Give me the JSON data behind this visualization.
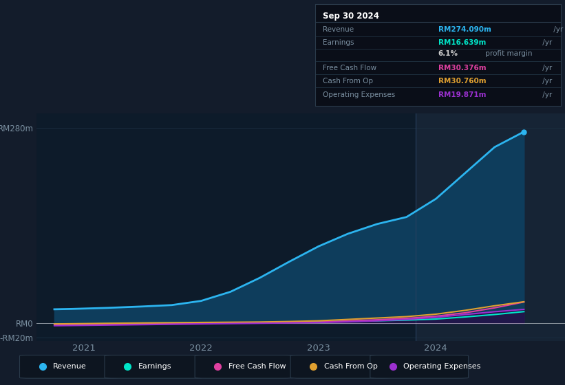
{
  "bg_color": "#131c2b",
  "chart_bg": "#0d1b2a",
  "highlight_bg": "#162435",
  "grid_color": "#1a2e40",
  "text_color": "#7a8fa0",
  "ylim_min": -25,
  "ylim_max": 300,
  "yticks": [
    -20,
    0,
    280
  ],
  "ytick_labels": [
    "-RM20m",
    "RM0",
    "RM280m"
  ],
  "xmin": 2020.6,
  "xmax": 2025.1,
  "highlight_x_start": 2023.83,
  "xticks": [
    2021,
    2022,
    2023,
    2024
  ],
  "revenue": {
    "x": [
      2020.75,
      2020.9,
      2021.0,
      2021.2,
      2021.5,
      2021.75,
      2022.0,
      2022.25,
      2022.5,
      2022.75,
      2023.0,
      2023.25,
      2023.5,
      2023.75,
      2024.0,
      2024.25,
      2024.5,
      2024.75
    ],
    "y": [
      20,
      20.5,
      21,
      22,
      24,
      26,
      32,
      45,
      65,
      88,
      110,
      128,
      142,
      152,
      178,
      215,
      252,
      274
    ],
    "color": "#2cb5f0",
    "fill_color": "#0e3d5c",
    "linewidth": 2.0
  },
  "earnings": {
    "x": [
      2020.75,
      2021.0,
      2021.25,
      2021.5,
      2021.75,
      2022.0,
      2022.25,
      2022.5,
      2022.75,
      2023.0,
      2023.25,
      2023.5,
      2023.75,
      2024.0,
      2024.25,
      2024.5,
      2024.75
    ],
    "y": [
      -1.5,
      -1.0,
      -0.5,
      0.2,
      0.5,
      0.8,
      1.0,
      1.2,
      1.5,
      2.0,
      2.8,
      3.5,
      4.5,
      6.0,
      9.0,
      12.5,
      16.639
    ],
    "color": "#00e5c8",
    "linewidth": 1.5
  },
  "free_cash_flow": {
    "x": [
      2020.75,
      2021.0,
      2021.25,
      2021.5,
      2021.75,
      2022.0,
      2022.25,
      2022.5,
      2022.75,
      2023.0,
      2023.25,
      2023.5,
      2023.75,
      2024.0,
      2024.25,
      2024.5,
      2024.75
    ],
    "y": [
      -2.5,
      -2.0,
      -1.5,
      -1.0,
      -0.5,
      0.0,
      0.3,
      0.6,
      1.0,
      1.8,
      3.2,
      5.0,
      7.0,
      10.0,
      15.0,
      22.0,
      30.376
    ],
    "color": "#e040a0",
    "linewidth": 1.5
  },
  "cash_from_op": {
    "x": [
      2020.75,
      2021.0,
      2021.25,
      2021.5,
      2021.75,
      2022.0,
      2022.25,
      2022.5,
      2022.75,
      2023.0,
      2023.25,
      2023.5,
      2023.75,
      2024.0,
      2024.25,
      2024.5,
      2024.75
    ],
    "y": [
      -1.0,
      -0.5,
      0.0,
      0.5,
      0.8,
      1.2,
      1.5,
      1.8,
      2.5,
      3.5,
      5.5,
      7.5,
      9.5,
      13.0,
      18.5,
      25.0,
      30.76
    ],
    "color": "#e0a030",
    "linewidth": 1.5
  },
  "operating_expenses": {
    "x": [
      2020.75,
      2021.0,
      2021.25,
      2021.5,
      2021.75,
      2022.0,
      2022.25,
      2022.5,
      2022.75,
      2023.0,
      2023.25,
      2023.5,
      2023.75,
      2024.0,
      2024.25,
      2024.5,
      2024.75
    ],
    "y": [
      -3.5,
      -3.0,
      -2.5,
      -2.0,
      -1.5,
      -1.0,
      -0.5,
      0.0,
      0.5,
      1.0,
      2.0,
      3.5,
      5.5,
      8.5,
      12.5,
      16.5,
      19.871
    ],
    "color": "#9b30d0",
    "fill_color": "#2a0845",
    "linewidth": 1.5
  },
  "infobox": {
    "date": "Sep 30 2024",
    "rows": [
      {
        "label": "Revenue",
        "value": "RM274.090m",
        "unit": "/yr",
        "color": "#2cb5f0"
      },
      {
        "label": "Earnings",
        "value": "RM16.639m",
        "unit": "/yr",
        "color": "#00e5c8"
      },
      {
        "label": "",
        "value": "6.1%",
        "unit": "profit margin",
        "color": "#cccccc"
      },
      {
        "label": "Free Cash Flow",
        "value": "RM30.376m",
        "unit": "/yr",
        "color": "#e040a0"
      },
      {
        "label": "Cash From Op",
        "value": "RM30.760m",
        "unit": "/yr",
        "color": "#e0a030"
      },
      {
        "label": "Operating Expenses",
        "value": "RM19.871m",
        "unit": "/yr",
        "color": "#9b30d0"
      }
    ]
  },
  "legend": [
    {
      "label": "Revenue",
      "color": "#2cb5f0"
    },
    {
      "label": "Earnings",
      "color": "#00e5c8"
    },
    {
      "label": "Free Cash Flow",
      "color": "#e040a0"
    },
    {
      "label": "Cash From Op",
      "color": "#e0a030"
    },
    {
      "label": "Operating Expenses",
      "color": "#9b30d0"
    }
  ]
}
